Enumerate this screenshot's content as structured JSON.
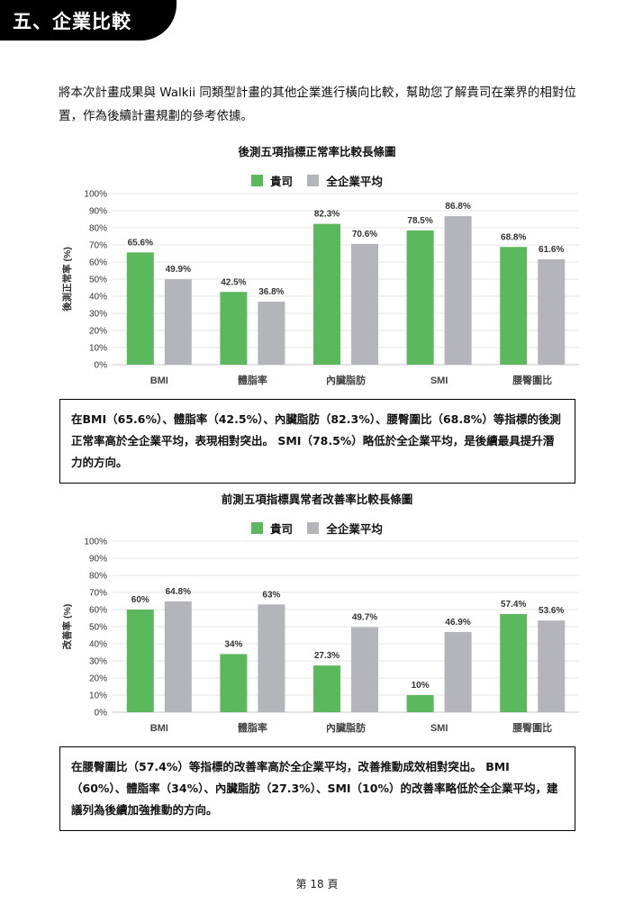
{
  "section": {
    "title": "五、企業比較"
  },
  "intro": "將本次計畫成果與 Walkii 同類型計畫的其他企業進行橫向比較，幫助您了解貴司在業界的相對位置，作為後續計畫規劃的參考依據。",
  "colors": {
    "company": "#5cb85c",
    "average": "#b3b5bb",
    "grid": "#e6e6e6"
  },
  "legend": {
    "company": "貴司",
    "average": "全企業平均"
  },
  "chart_data": [
    {
      "type": "bar",
      "title": "後測五項指標正常率比較長條圖",
      "ylabel": "後測正常率 (%)",
      "ylim": [
        0,
        100
      ],
      "yticks": [
        "0%",
        "10%",
        "20%",
        "30%",
        "40%",
        "50%",
        "60%",
        "70%",
        "80%",
        "90%",
        "100%"
      ],
      "grid": true,
      "legend_position": "top",
      "categories": [
        "BMI",
        "體脂率",
        "內臟脂肪",
        "SMI",
        "腰臀圍比"
      ],
      "series": [
        {
          "name": "貴司",
          "values": [
            65.6,
            42.5,
            82.3,
            78.5,
            68.8
          ],
          "labels": [
            "65.6%",
            "42.5%",
            "82.3%",
            "78.5%",
            "68.8%"
          ]
        },
        {
          "name": "全企業平均",
          "values": [
            49.9,
            36.8,
            70.6,
            86.8,
            61.6
          ],
          "labels": [
            "49.9%",
            "36.8%",
            "70.6%",
            "86.8%",
            "61.6%"
          ]
        }
      ]
    },
    {
      "type": "bar",
      "title": "前測五項指標異常者改善率比較長條圖",
      "ylabel": "改善率 (%)",
      "ylim": [
        0,
        100
      ],
      "yticks": [
        "0%",
        "10%",
        "20%",
        "30%",
        "40%",
        "50%",
        "60%",
        "70%",
        "80%",
        "90%",
        "100%"
      ],
      "grid": true,
      "legend_position": "top",
      "categories": [
        "BMI",
        "體脂率",
        "內臟脂肪",
        "SMI",
        "腰臀圍比"
      ],
      "series": [
        {
          "name": "貴司",
          "values": [
            60,
            34,
            27.3,
            10,
            57.4
          ],
          "labels": [
            "60%",
            "34%",
            "27.3%",
            "10%",
            "57.4%"
          ]
        },
        {
          "name": "全企業平均",
          "values": [
            64.8,
            63,
            49.7,
            46.9,
            53.6
          ],
          "labels": [
            "64.8%",
            "63%",
            "49.7%",
            "46.9%",
            "53.6%"
          ]
        }
      ]
    }
  ],
  "notes": [
    "在BMI（65.6%）、體脂率（42.5%）、內臟脂肪（82.3%）、腰臀圍比（68.8%）等指標的後測正常率高於全企業平均，表現相對突出。 SMI（78.5%）略低於全企業平均，是後續最具提升潛力的方向。",
    "在腰臀圍比（57.4%）等指標的改善率高於全企業平均，改善推動成效相對突出。 BMI（60%）、體脂率（34%）、內臟脂肪（27.3%）、SMI（10%）的改善率略低於全企業平均，建議列為後續加強推動的方向。"
  ],
  "footer": {
    "page": "第 18 頁"
  }
}
